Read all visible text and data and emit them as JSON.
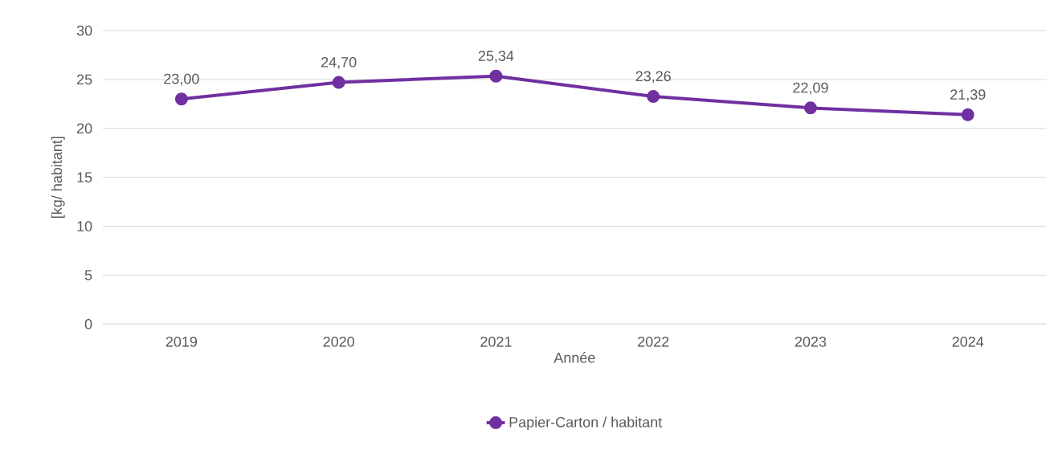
{
  "chart_data": {
    "type": "line",
    "xlabel": "Année",
    "ylabel": "[kg/ habitant]",
    "categories": [
      "2019",
      "2020",
      "2021",
      "2022",
      "2023",
      "2024"
    ],
    "series": [
      {
        "name": "Papier-Carton / habitant",
        "color": "#7030a0",
        "values": [
          23.0,
          24.7,
          25.34,
          23.26,
          22.09,
          21.39
        ],
        "value_labels": [
          "23,00",
          "24,70",
          "25,34",
          "23,26",
          "22,09",
          "21,39"
        ]
      }
    ],
    "ylim": [
      0,
      30
    ],
    "yticks": [
      0,
      5,
      10,
      15,
      20,
      25,
      30
    ],
    "grid": "y",
    "legend": "bottom",
    "marker": "circle",
    "line_style": "solid"
  }
}
